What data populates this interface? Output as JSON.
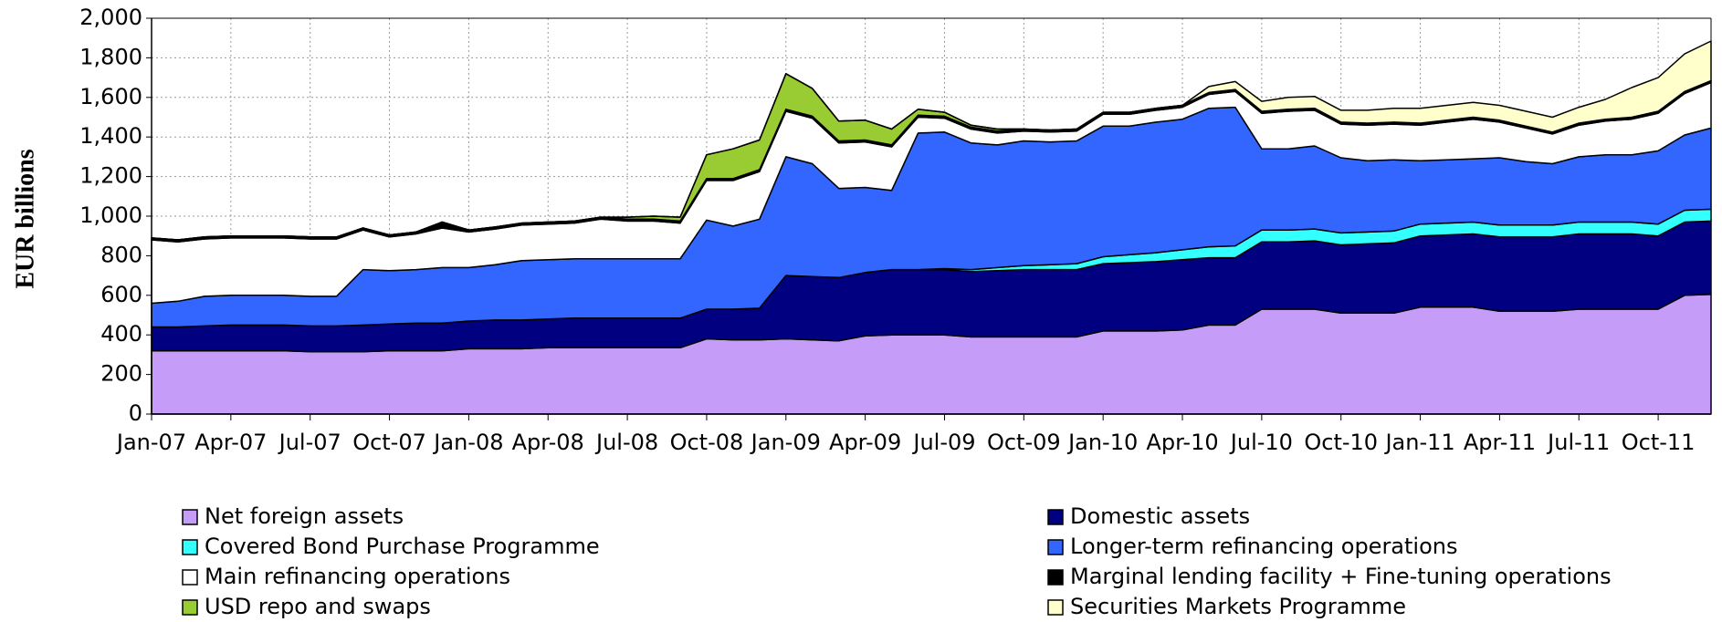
{
  "chart_data": {
    "type": "stacked-area",
    "y_label": "EUR billions",
    "categories": [
      "Jan-07",
      null,
      null,
      "Apr-07",
      null,
      null,
      "Jul-07",
      null,
      null,
      "Oct-07",
      null,
      null,
      "Jan-08",
      null,
      null,
      "Apr-08",
      null,
      null,
      "Jul-08",
      null,
      null,
      "Oct-08",
      null,
      null,
      "Jan-09",
      null,
      null,
      "Apr-09",
      null,
      null,
      "Jul-09",
      null,
      null,
      "Oct-09",
      null,
      null,
      "Jan-10",
      null,
      null,
      "Apr-10",
      null,
      null,
      "Jul-10",
      null,
      null,
      "Oct-10",
      null,
      null,
      "Jan-11",
      null,
      null,
      "Apr-11",
      null,
      null,
      "Jul-11",
      null,
      null,
      "Oct-11",
      null,
      null
    ],
    "ylim": [
      0,
      2000
    ],
    "yticks": [
      0,
      200,
      400,
      600,
      800,
      {
        "value": 1000,
        "label": "1,000"
      },
      {
        "value": 1200,
        "label": "1,200"
      },
      {
        "value": 1400,
        "label": "1,400"
      },
      {
        "value": 1600,
        "label": "1,600"
      },
      {
        "value": 1800,
        "label": "1,800"
      },
      {
        "value": 2000,
        "label": "2,000"
      }
    ],
    "grid": true,
    "legend": "bottom",
    "series": [
      {
        "name": "Net foreign assets",
        "color": "#c59cf7",
        "values": [
          320,
          320,
          320,
          320,
          320,
          320,
          315,
          315,
          315,
          320,
          320,
          320,
          330,
          330,
          330,
          335,
          335,
          335,
          335,
          335,
          335,
          380,
          375,
          375,
          380,
          375,
          370,
          395,
          400,
          400,
          400,
          390,
          390,
          390,
          390,
          390,
          420,
          420,
          420,
          425,
          450,
          450,
          530,
          530,
          530,
          510,
          510,
          510,
          540,
          540,
          540,
          520,
          520,
          520,
          530,
          530,
          530,
          530,
          600,
          605
        ]
      },
      {
        "name": "Domestic assets",
        "color": "#000080",
        "values": [
          120,
          120,
          125,
          130,
          130,
          130,
          130,
          130,
          135,
          135,
          140,
          140,
          140,
          145,
          145,
          145,
          150,
          150,
          150,
          150,
          150,
          150,
          155,
          160,
          320,
          320,
          320,
          320,
          330,
          330,
          330,
          330,
          335,
          340,
          340,
          340,
          340,
          345,
          350,
          355,
          340,
          340,
          340,
          340,
          345,
          345,
          350,
          355,
          360,
          365,
          370,
          375,
          375,
          375,
          380,
          380,
          380,
          370,
          370,
          370
        ]
      },
      {
        "name": "Covered Bond Purchase Programme",
        "color": "#33ffff",
        "values": [
          0,
          0,
          0,
          0,
          0,
          0,
          0,
          0,
          0,
          0,
          0,
          0,
          0,
          0,
          0,
          0,
          0,
          0,
          0,
          0,
          0,
          0,
          0,
          0,
          0,
          0,
          0,
          0,
          0,
          0,
          5,
          10,
          15,
          20,
          25,
          30,
          35,
          40,
          45,
          50,
          55,
          60,
          60,
          60,
          60,
          60,
          60,
          60,
          60,
          60,
          60,
          60,
          60,
          60,
          60,
          60,
          60,
          60,
          60,
          60
        ]
      },
      {
        "name": "Longer-term refinancing operations",
        "color": "#3366ff",
        "values": [
          120,
          130,
          150,
          150,
          150,
          150,
          150,
          150,
          280,
          270,
          270,
          280,
          270,
          280,
          300,
          300,
          300,
          300,
          300,
          300,
          300,
          450,
          420,
          450,
          600,
          570,
          450,
          430,
          400,
          690,
          690,
          640,
          620,
          630,
          620,
          620,
          660,
          650,
          660,
          660,
          700,
          700,
          410,
          410,
          420,
          380,
          360,
          360,
          320,
          320,
          320,
          340,
          320,
          310,
          330,
          340,
          340,
          370,
          380,
          410
        ]
      },
      {
        "name": "Main refinancing operations",
        "color": "#ffffff",
        "values": [
          320,
          300,
          290,
          290,
          290,
          290,
          290,
          290,
          200,
          170,
          180,
          200,
          180,
          180,
          180,
          180,
          180,
          200,
          190,
          190,
          180,
          200,
          230,
          240,
          230,
          230,
          230,
          230,
          220,
          80,
          70,
          70,
          60,
          50,
          50,
          50,
          60,
          60,
          60,
          60,
          70,
          80,
          180,
          190,
          180,
          170,
          180,
          180,
          180,
          190,
          200,
          180,
          170,
          150,
          160,
          170,
          180,
          190,
          210,
          230
        ]
      },
      {
        "name": "Marginal lending facility + Fine-tuning operations",
        "color": "#000000",
        "values": [
          10,
          10,
          10,
          10,
          10,
          10,
          10,
          10,
          10,
          10,
          10,
          30,
          10,
          10,
          10,
          10,
          10,
          10,
          10,
          10,
          10,
          10,
          10,
          10,
          10,
          10,
          10,
          10,
          10,
          10,
          10,
          10,
          10,
          10,
          10,
          10,
          10,
          10,
          10,
          10,
          10,
          10,
          10,
          10,
          10,
          10,
          10,
          10,
          10,
          10,
          10,
          10,
          10,
          10,
          10,
          10,
          10,
          10,
          10,
          10
        ]
      },
      {
        "name": "USD repo and swaps",
        "color": "#99cc33",
        "values": [
          0,
          0,
          0,
          0,
          0,
          0,
          0,
          0,
          0,
          0,
          0,
          0,
          0,
          0,
          0,
          0,
          0,
          0,
          10,
          15,
          20,
          120,
          150,
          150,
          180,
          140,
          100,
          100,
          80,
          30,
          20,
          10,
          10,
          0,
          0,
          0,
          0,
          0,
          0,
          0,
          0,
          0,
          0,
          0,
          0,
          0,
          0,
          0,
          0,
          0,
          0,
          0,
          0,
          0,
          0,
          0,
          0,
          0,
          0,
          0
        ]
      },
      {
        "name": "Securities Markets Programme",
        "color": "#ffffcc",
        "values": [
          0,
          0,
          0,
          0,
          0,
          0,
          0,
          0,
          0,
          0,
          0,
          0,
          0,
          0,
          0,
          0,
          0,
          0,
          0,
          0,
          0,
          0,
          0,
          0,
          0,
          0,
          0,
          0,
          0,
          0,
          0,
          0,
          0,
          0,
          0,
          0,
          0,
          0,
          0,
          0,
          30,
          40,
          50,
          60,
          60,
          60,
          65,
          70,
          75,
          75,
          75,
          75,
          75,
          75,
          80,
          100,
          150,
          170,
          190,
          200
        ]
      }
    ]
  }
}
